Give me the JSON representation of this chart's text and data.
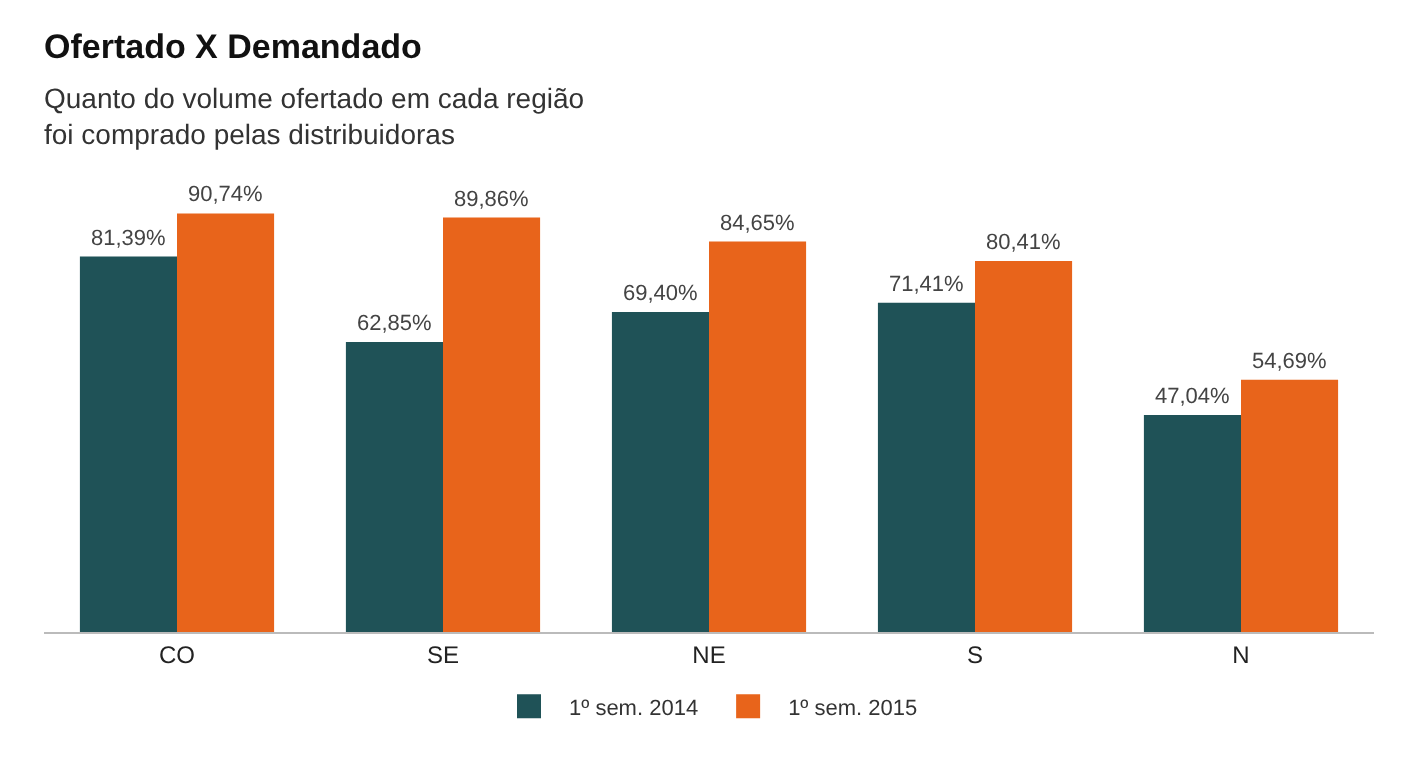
{
  "chart_data": {
    "type": "bar",
    "title": "Ofertado X Demandado",
    "subtitle": "Quanto do volume ofertado em cada região\nfoi comprado pelas distribuidoras",
    "categories": [
      "CO",
      "SE",
      "NE",
      "S",
      "N"
    ],
    "series": [
      {
        "name": "1º sem. 2014",
        "color": "#1f5257",
        "values": [
          81.39,
          62.85,
          69.4,
          71.41,
          47.04
        ],
        "value_labels": [
          "81,39%",
          "62,85%",
          "69,40%",
          "71,41%",
          "47,04%"
        ]
      },
      {
        "name": "1º sem. 2015",
        "color": "#e8641b",
        "values": [
          90.74,
          89.86,
          84.65,
          80.41,
          54.69
        ],
        "value_labels": [
          "90,74%",
          "89,86%",
          "84,65%",
          "80,41%",
          "54,69%"
        ]
      }
    ],
    "legend": "bottom"
  }
}
